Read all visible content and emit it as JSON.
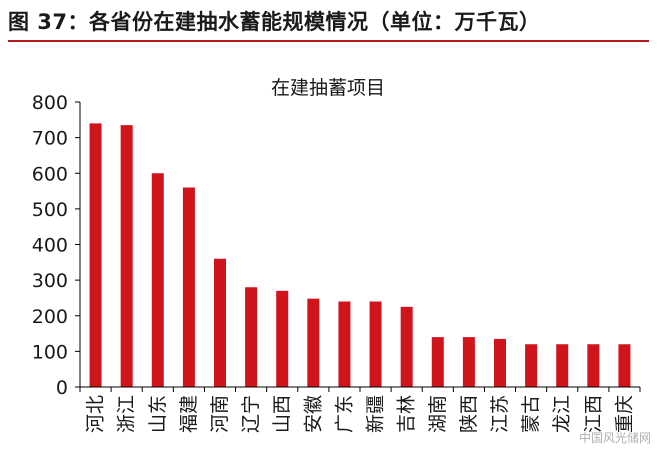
{
  "figure": {
    "title": "图 37：各省份在建抽水蓄能规模情况（单位：万千瓦）",
    "watermark": "中国风光储网"
  },
  "colors": {
    "accent": "#b4191b",
    "bar": "#d0141c",
    "axis": "#000000",
    "text": "#1a1a1a"
  },
  "chart_data": {
    "type": "bar",
    "title": "在建抽蓄项目",
    "xlabel": "",
    "ylabel": "",
    "categories": [
      "河北",
      "浙江",
      "山东",
      "福建",
      "河南",
      "辽宁",
      "山西",
      "安徽",
      "广东",
      "新疆",
      "吉林",
      "湖南",
      "陕西",
      "江苏",
      "蒙古",
      "龙江",
      "江西",
      "重庆"
    ],
    "values": [
      740,
      735,
      600,
      560,
      360,
      280,
      270,
      248,
      240,
      240,
      225,
      140,
      140,
      135,
      120,
      120,
      120,
      120
    ],
    "ylim": [
      0,
      800
    ],
    "yticks": [
      0,
      100,
      200,
      300,
      400,
      500,
      600,
      700,
      800
    ],
    "grid": false,
    "legend": "none"
  }
}
